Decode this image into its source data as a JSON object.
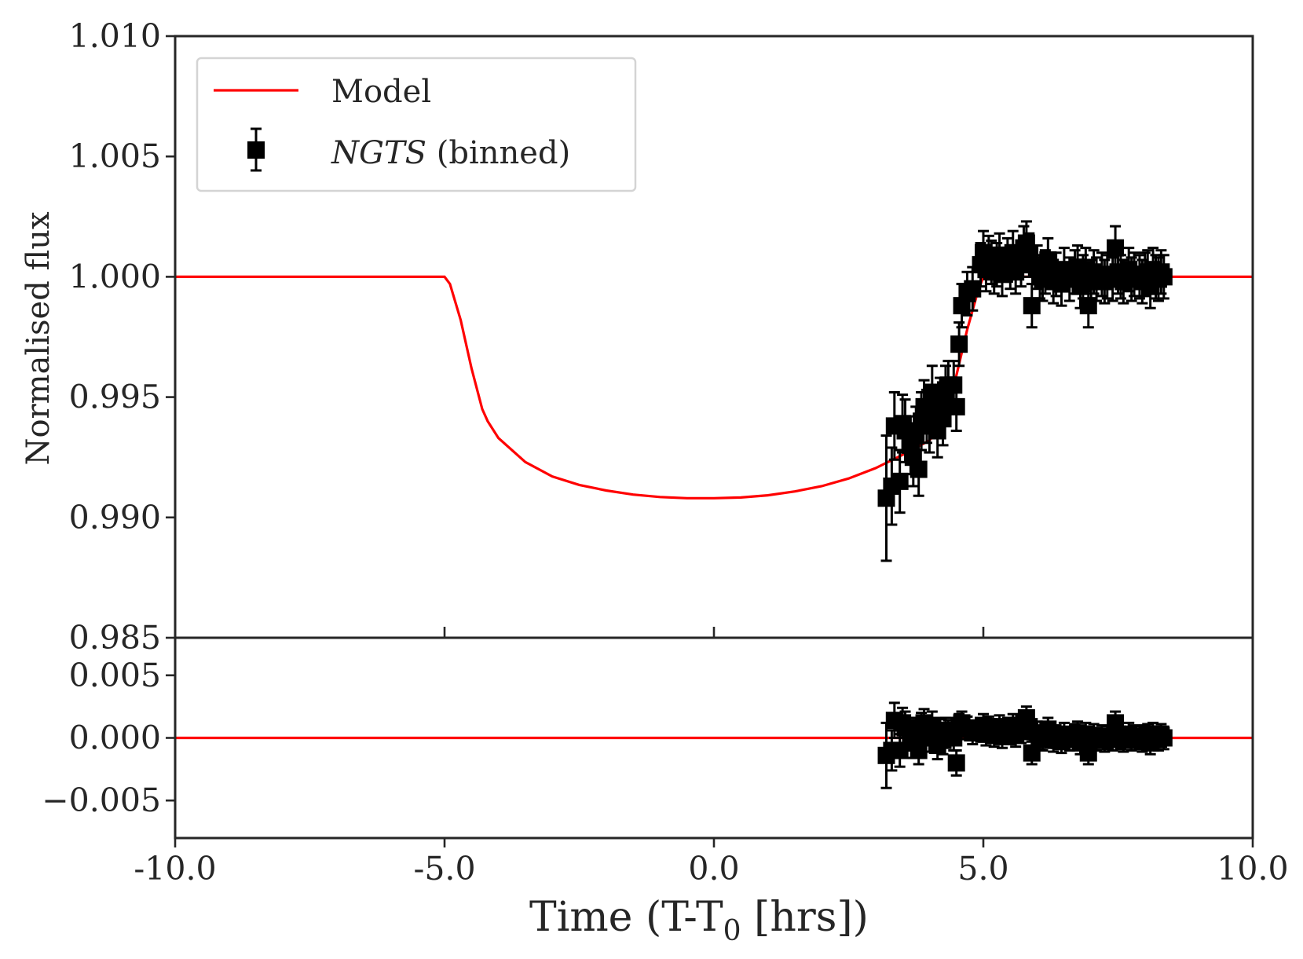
{
  "chart_data": [
    {
      "panel": "main",
      "type": "line+errorbar",
      "xlabel": "Time (T-T",
      "xlabel_sub": "0",
      "xlabel_tail": " [hrs])",
      "ylabel": "Normalised flux",
      "xlim": [
        -10.0,
        10.0
      ],
      "ylim": [
        0.985,
        1.01
      ],
      "x_ticks": [
        -10.0,
        -5.0,
        0.0,
        5.0,
        10.0
      ],
      "x_tick_labels": [
        "-10.0",
        "-5.0",
        "0.0",
        "5.0",
        "10.0"
      ],
      "y_ticks": [
        0.985,
        0.99,
        0.995,
        1.0,
        1.005,
        1.01
      ],
      "y_tick_labels": [
        "0.985",
        "0.990",
        "0.995",
        "1.000",
        "1.005",
        "1.010"
      ],
      "legend": {
        "position": "upper-left",
        "entries": [
          {
            "label": "Model",
            "kind": "line",
            "color": "#ff0000"
          },
          {
            "label_italic": "NGTS",
            "label_rest": " (binned)",
            "kind": "errorbar-square",
            "color": "#000000"
          }
        ]
      },
      "model": {
        "name": "Model",
        "color": "#ff0000",
        "x": [
          -10.0,
          -5.0,
          -4.9,
          -4.7,
          -4.5,
          -4.3,
          -4.2,
          -4.0,
          -3.5,
          -3.0,
          -2.5,
          -2.0,
          -1.5,
          -1.0,
          -0.5,
          0.0,
          0.5,
          1.0,
          1.5,
          2.0,
          2.5,
          3.0,
          3.5,
          4.0,
          4.2,
          4.35,
          4.5,
          4.7,
          4.9,
          5.0,
          10.0
        ],
        "y": [
          1.0,
          1.0,
          0.9997,
          0.9982,
          0.9962,
          0.9945,
          0.994,
          0.9933,
          0.9923,
          0.9917,
          0.99135,
          0.99112,
          0.99095,
          0.99085,
          0.9908,
          0.9908,
          0.99083,
          0.99092,
          0.99108,
          0.9913,
          0.99162,
          0.99205,
          0.9926,
          0.9932,
          0.9938,
          0.9945,
          0.9959,
          0.9978,
          0.9994,
          1.0,
          1.0
        ]
      },
      "series": {
        "name": "NGTS (binned)",
        "color": "#000000",
        "x": [
          3.2,
          3.3,
          3.35,
          3.45,
          3.5,
          3.55,
          3.65,
          3.7,
          3.75,
          3.8,
          3.85,
          3.9,
          3.95,
          4.0,
          4.05,
          4.1,
          4.15,
          4.2,
          4.25,
          4.3,
          4.35,
          4.45,
          4.5,
          4.55,
          4.6,
          4.7,
          4.8,
          4.95,
          5.0,
          5.05,
          5.1,
          5.15,
          5.2,
          5.25,
          5.3,
          5.35,
          5.45,
          5.5,
          5.55,
          5.6,
          5.7,
          5.75,
          5.8,
          5.85,
          5.9,
          6.0,
          6.05,
          6.1,
          6.15,
          6.2,
          6.3,
          6.35,
          6.45,
          6.5,
          6.6,
          6.7,
          6.75,
          6.8,
          6.85,
          6.9,
          6.95,
          7.0,
          7.05,
          7.1,
          7.2,
          7.25,
          7.3,
          7.4,
          7.45,
          7.5,
          7.55,
          7.6,
          7.7,
          7.75,
          7.8,
          7.9,
          7.95,
          8.0,
          8.05,
          8.1,
          8.15,
          8.2,
          8.25,
          8.3,
          8.35
        ],
        "y": [
          0.9908,
          0.9913,
          0.9938,
          0.9915,
          0.9939,
          0.9936,
          0.993,
          0.9925,
          0.9934,
          0.992,
          0.994,
          0.9946,
          0.9942,
          0.9938,
          0.9952,
          0.9944,
          0.9936,
          0.9947,
          0.9941,
          0.9953,
          0.9955,
          0.9955,
          0.9946,
          0.9972,
          0.9988,
          0.9993,
          0.9995,
          1.0005,
          1.001,
          1.0003,
          1.0008,
          1.0006,
          1.0002,
          1.0005,
          1.0009,
          1.0001,
          1.0007,
          1.0004,
          1.001,
          1.0002,
          1.0005,
          1.0012,
          1.0014,
          1.0009,
          0.9988,
          1.0004,
          1.0,
          0.9999,
          1.0002,
          1.0007,
          0.9998,
          1.0001,
          0.9997,
          1.0003,
          0.9999,
          1.0002,
          1.0004,
          0.9996,
          1.0,
          1.0003,
          0.9988,
          0.9998,
          1.0002,
          0.9999,
          1.0001,
          0.9998,
          1.0,
          0.9999,
          1.0012,
          1.0002,
          1.0,
          0.9998,
          1.0003,
          0.9999,
          1.0001,
          1.0,
          0.9998,
          1.0001,
          1.0002,
          0.9996,
          1.0003,
          1.0,
          0.9999,
          1.0002,
          1.0
        ],
        "yerr": [
          0.0026,
          0.0016,
          0.0014,
          0.0013,
          0.0012,
          0.0013,
          0.0012,
          0.0012,
          0.0012,
          0.0011,
          0.0012,
          0.0011,
          0.0011,
          0.0011,
          0.0011,
          0.0011,
          0.0011,
          0.0011,
          0.0011,
          0.001,
          0.001,
          0.001,
          0.001,
          0.0009,
          0.0009,
          0.0009,
          0.0009,
          0.0009,
          0.0009,
          0.0009,
          0.0009,
          0.0009,
          0.0009,
          0.0009,
          0.0009,
          0.0009,
          0.0009,
          0.0009,
          0.0009,
          0.0009,
          0.0009,
          0.0009,
          0.0009,
          0.0009,
          0.0009,
          0.0009,
          0.0009,
          0.0009,
          0.0009,
          0.0009,
          0.0009,
          0.0009,
          0.0009,
          0.0009,
          0.0009,
          0.0009,
          0.0009,
          0.0009,
          0.0009,
          0.0009,
          0.0009,
          0.0009,
          0.0009,
          0.0009,
          0.0009,
          0.0009,
          0.0009,
          0.0009,
          0.0009,
          0.0009,
          0.0009,
          0.0009,
          0.0009,
          0.0009,
          0.0009,
          0.0009,
          0.0009,
          0.0009,
          0.0009,
          0.0009,
          0.0009,
          0.0009,
          0.0009,
          0.0009,
          0.0009
        ]
      }
    },
    {
      "panel": "residuals",
      "type": "line+errorbar",
      "xlim": [
        -10.0,
        10.0
      ],
      "ylim": [
        -0.008,
        0.008
      ],
      "y_ticks": [
        0.005,
        0.0,
        -0.005
      ],
      "y_tick_labels": [
        "0.005",
        "0.000",
        "−0.005"
      ],
      "zero_line": {
        "y": 0.0,
        "color": "#ff0000"
      },
      "series": {
        "name": "NGTS residuals",
        "color": "#000000",
        "x": [
          3.2,
          3.3,
          3.35,
          3.45,
          3.5,
          3.55,
          3.65,
          3.7,
          3.75,
          3.8,
          3.85,
          3.9,
          3.95,
          4.0,
          4.05,
          4.1,
          4.15,
          4.2,
          4.25,
          4.3,
          4.35,
          4.45,
          4.5,
          4.55,
          4.6,
          4.7,
          4.8,
          4.95,
          5.0,
          5.05,
          5.1,
          5.15,
          5.2,
          5.25,
          5.3,
          5.35,
          5.45,
          5.5,
          5.55,
          5.6,
          5.7,
          5.75,
          5.8,
          5.85,
          5.9,
          6.0,
          6.05,
          6.1,
          6.15,
          6.2,
          6.3,
          6.35,
          6.45,
          6.5,
          6.6,
          6.7,
          6.75,
          6.8,
          6.85,
          6.9,
          6.95,
          7.0,
          7.05,
          7.1,
          7.2,
          7.25,
          7.3,
          7.4,
          7.45,
          7.5,
          7.55,
          7.6,
          7.7,
          7.75,
          7.8,
          7.9,
          7.95,
          8.0,
          8.05,
          8.1,
          8.15,
          8.2,
          8.25,
          8.3,
          8.35
        ],
        "y": [
          -0.0014,
          -0.001,
          0.0014,
          -0.001,
          0.0012,
          0.0008,
          0.0002,
          -0.0004,
          0.0004,
          -0.001,
          0.0008,
          0.0012,
          0.0006,
          0.0,
          0.001,
          0.0002,
          -0.0006,
          0.0004,
          -0.0002,
          0.0006,
          0.0004,
          0.0,
          -0.002,
          0.001,
          0.0012,
          0.0008,
          0.0004,
          0.0006,
          0.001,
          0.0003,
          0.0008,
          0.0006,
          0.0002,
          0.0005,
          0.0009,
          0.0001,
          0.0007,
          0.0004,
          0.001,
          0.0002,
          0.0005,
          0.0012,
          0.0016,
          0.0009,
          -0.0012,
          0.0004,
          0.0,
          -0.0001,
          0.0002,
          0.0007,
          -0.0002,
          0.0001,
          -0.0003,
          0.0003,
          -0.0001,
          0.0002,
          0.0004,
          -0.0004,
          0.0,
          0.0003,
          -0.0012,
          -0.0002,
          0.0002,
          -0.0001,
          0.0001,
          -0.0002,
          0.0,
          -0.0001,
          0.0012,
          0.0002,
          0.0,
          -0.0002,
          0.0003,
          -0.0001,
          0.0001,
          0.0,
          -0.0002,
          0.0001,
          0.0002,
          -0.0004,
          0.0003,
          0.0,
          -0.0001,
          0.0002,
          0.0
        ],
        "yerr": [
          0.0026,
          0.0016,
          0.0014,
          0.0013,
          0.0012,
          0.0013,
          0.0012,
          0.0012,
          0.0012,
          0.0011,
          0.0012,
          0.0011,
          0.0011,
          0.0011,
          0.0011,
          0.0011,
          0.0011,
          0.0011,
          0.0011,
          0.001,
          0.001,
          0.001,
          0.001,
          0.0009,
          0.0009,
          0.0009,
          0.0009,
          0.0009,
          0.0009,
          0.0009,
          0.0009,
          0.0009,
          0.0009,
          0.0009,
          0.0009,
          0.0009,
          0.0009,
          0.0009,
          0.0009,
          0.0009,
          0.0009,
          0.0009,
          0.0009,
          0.0009,
          0.0009,
          0.0009,
          0.0009,
          0.0009,
          0.0009,
          0.0009,
          0.0009,
          0.0009,
          0.0009,
          0.0009,
          0.0009,
          0.0009,
          0.0009,
          0.0009,
          0.0009,
          0.0009,
          0.0009,
          0.0009,
          0.0009,
          0.0009,
          0.0009,
          0.0009,
          0.0009,
          0.0009,
          0.0009,
          0.0009,
          0.0009,
          0.0009,
          0.0009,
          0.0009,
          0.0009,
          0.0009,
          0.0009,
          0.0009,
          0.0009,
          0.0009,
          0.0009,
          0.0009,
          0.0009,
          0.0009,
          0.0009
        ]
      }
    }
  ]
}
